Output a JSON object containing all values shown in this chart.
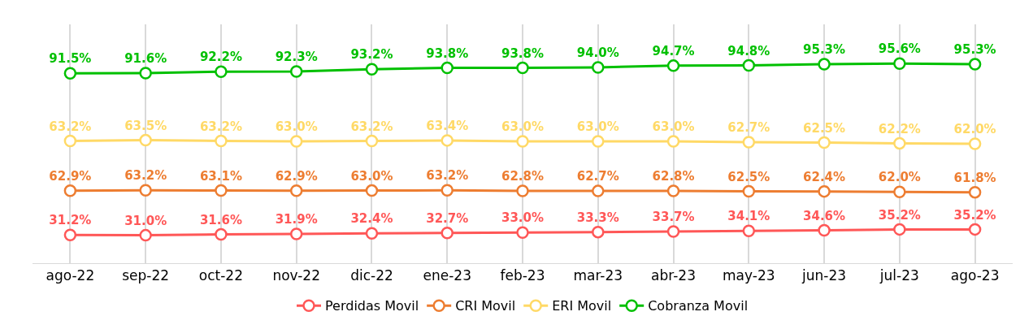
{
  "chart_data": {
    "type": "line",
    "categories": [
      "ago-22",
      "sep-22",
      "oct-22",
      "nov-22",
      "dic-22",
      "ene-23",
      "feb-23",
      "mar-23",
      "abr-23",
      "may-23",
      "jun-23",
      "jul-23",
      "ago-23"
    ],
    "series": [
      {
        "name": "Perdidas Movil",
        "color": "#ff5757",
        "axis": "y2",
        "values": [
          31.2,
          31.0,
          31.6,
          31.9,
          32.4,
          32.7,
          33.0,
          33.3,
          33.7,
          34.1,
          34.6,
          35.2,
          35.2
        ],
        "value_labels": [
          "31.2%",
          "31.0%",
          "31.6%",
          "31.9%",
          "32.4%",
          "32.7%",
          "33.0%",
          "33.3%",
          "33.7%",
          "34.1%",
          "34.6%",
          "35.2%",
          "35.2%"
        ]
      },
      {
        "name": "CRI Movil",
        "color": "#ed7d31",
        "axis": "y2",
        "values": [
          62.9,
          63.2,
          63.1,
          62.9,
          63.0,
          63.2,
          62.8,
          62.7,
          62.8,
          62.5,
          62.4,
          62.0,
          61.8
        ],
        "value_labels": [
          "62.9%",
          "63.2%",
          "63.1%",
          "62.9%",
          "63.0%",
          "63.2%",
          "62.8%",
          "62.7%",
          "62.8%",
          "62.5%",
          "62.4%",
          "62.0%",
          "61.8%"
        ]
      },
      {
        "name": "ERI Movil",
        "color": "#ffd966",
        "axis": "y",
        "values": [
          63.2,
          63.5,
          63.2,
          63.0,
          63.2,
          63.4,
          63.0,
          63.0,
          63.0,
          62.7,
          62.5,
          62.2,
          62.0
        ],
        "value_labels": [
          "63.2%",
          "63.5%",
          "63.2%",
          "63.0%",
          "63.2%",
          "63.4%",
          "63.0%",
          "63.0%",
          "63.0%",
          "62.7%",
          "62.5%",
          "62.2%",
          "62.0%"
        ]
      },
      {
        "name": "Cobranza Movil",
        "color": "#00c000",
        "axis": "y",
        "values": [
          91.5,
          91.6,
          92.2,
          92.3,
          93.2,
          93.8,
          93.8,
          94.0,
          94.7,
          94.8,
          95.3,
          95.6,
          95.3
        ],
        "value_labels": [
          "91.5%",
          "91.6%",
          "92.2%",
          "92.3%",
          "93.2%",
          "93.8%",
          "93.8%",
          "94.0%",
          "94.7%",
          "94.8%",
          "95.3%",
          "95.6%",
          "95.3%"
        ]
      }
    ],
    "ylim": [
      12,
      112
    ],
    "y2lim": [
      11,
      182
    ],
    "tick_labels": "x",
    "grid": "x",
    "legend": "bottom",
    "marker": "circle",
    "line_style": "solid"
  }
}
